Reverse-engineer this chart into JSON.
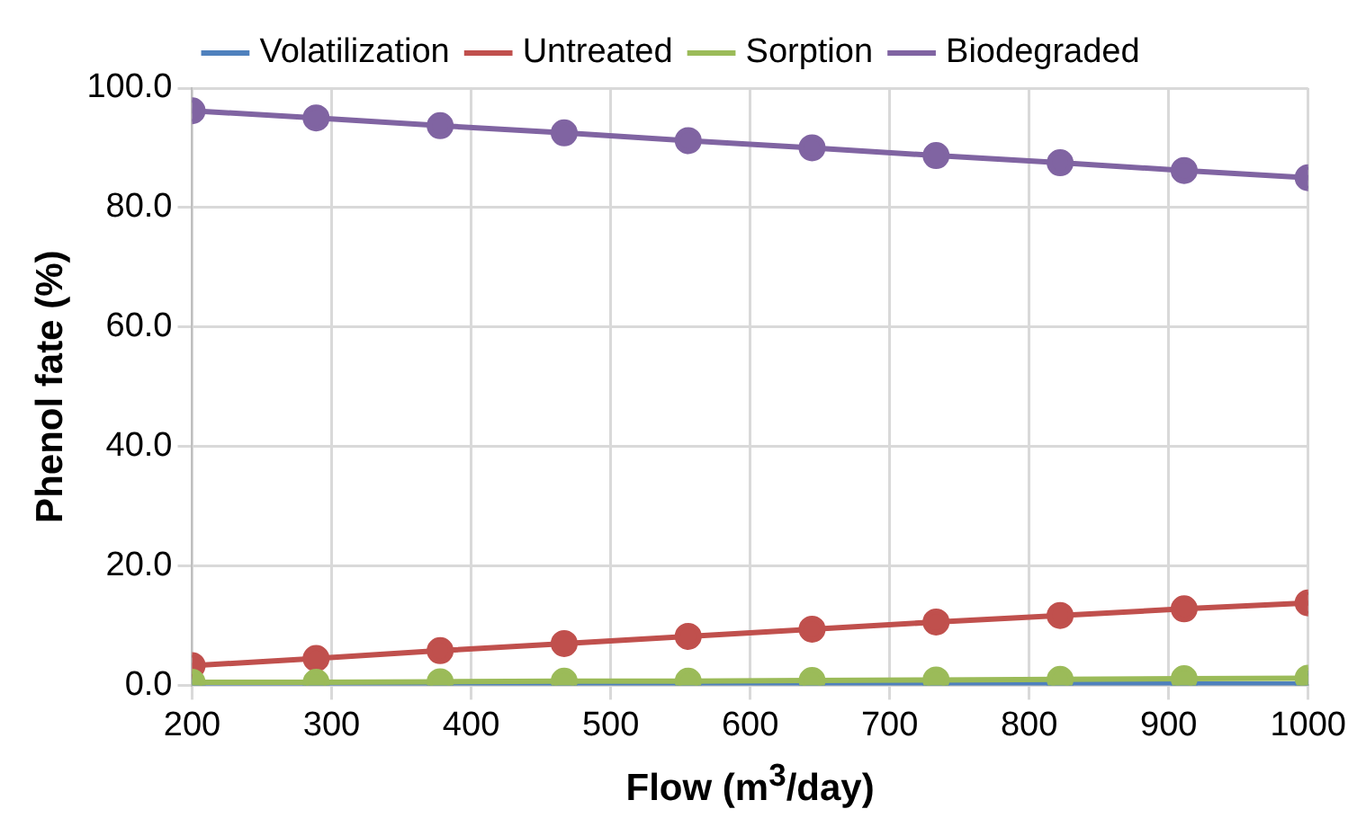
{
  "chart_data": {
    "type": "line",
    "xlabel": "Flow (m$^{3}$/day)",
    "ylabel": "Phenol fate (%)",
    "x": [
      200,
      288.9,
      377.8,
      466.7,
      555.6,
      644.4,
      733.3,
      822.2,
      911.1,
      1000
    ],
    "series": [
      {
        "name": "Volatilization",
        "color": "#4f81bd",
        "values": [
          0.1,
          0.1,
          0.1,
          0.1,
          0.1,
          0.2,
          0.2,
          0.2,
          0.2,
          0.2
        ]
      },
      {
        "name": "Untreated",
        "color": "#c0504d",
        "values": [
          3.3,
          4.5,
          5.8,
          7.0,
          8.2,
          9.4,
          10.6,
          11.7,
          12.8,
          13.8
        ]
      },
      {
        "name": "Sorption",
        "color": "#9bbb59",
        "values": [
          0.5,
          0.5,
          0.6,
          0.7,
          0.7,
          0.8,
          0.9,
          1.0,
          1.1,
          1.2
        ]
      },
      {
        "name": "Biodegraded",
        "color": "#8064a2",
        "values": [
          96.2,
          95.0,
          93.7,
          92.5,
          91.2,
          90.0,
          88.7,
          87.5,
          86.2,
          85.0
        ]
      }
    ],
    "xlim": [
      200,
      1000
    ],
    "xticks": [
      200,
      300,
      400,
      500,
      600,
      700,
      800,
      900,
      1000
    ],
    "ylim": [
      0,
      100
    ],
    "yticks": [
      {
        "value": 0,
        "label": "0.0"
      },
      {
        "value": 20,
        "label": "20.0"
      },
      {
        "value": 40,
        "label": "40.0"
      },
      {
        "value": 60,
        "label": "60.0"
      },
      {
        "value": 80,
        "label": "80.0"
      },
      {
        "value": 100,
        "label": "100.0"
      }
    ],
    "grid": true,
    "legend": "top",
    "marker": "circle",
    "line_style": "solid"
  }
}
